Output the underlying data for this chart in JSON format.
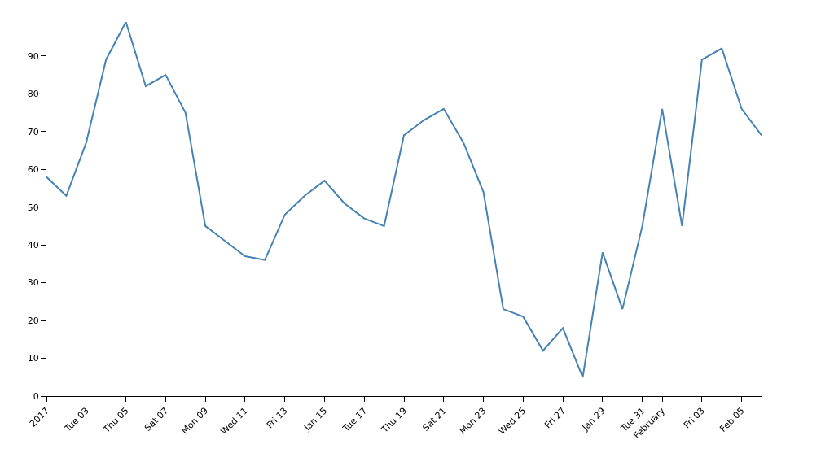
{
  "chart_data": {
    "type": "line",
    "x": [
      "2017-01-01",
      "2017-01-02",
      "2017-01-03",
      "2017-01-04",
      "2017-01-05",
      "2017-01-06",
      "2017-01-07",
      "2017-01-08",
      "2017-01-09",
      "2017-01-10",
      "2017-01-11",
      "2017-01-12",
      "2017-01-13",
      "2017-01-14",
      "2017-01-15",
      "2017-01-16",
      "2017-01-17",
      "2017-01-18",
      "2017-01-19",
      "2017-01-20",
      "2017-01-21",
      "2017-01-22",
      "2017-01-23",
      "2017-01-24",
      "2017-01-25",
      "2017-01-26",
      "2017-01-27",
      "2017-01-28",
      "2017-01-29",
      "2017-01-30",
      "2017-01-31",
      "2017-02-01",
      "2017-02-02",
      "2017-02-03",
      "2017-02-04",
      "2017-02-05",
      "2017-02-06"
    ],
    "values": [
      58,
      53,
      67,
      89,
      99,
      82,
      85,
      75,
      45,
      41,
      37,
      36,
      48,
      53,
      57,
      51,
      47,
      45,
      69,
      73,
      76,
      67,
      54,
      23,
      21,
      12,
      18,
      5,
      38,
      23,
      45,
      76,
      45,
      89,
      92,
      76,
      69
    ],
    "color": "#4682b4",
    "line_style": "solid",
    "marker": "none",
    "xlim": [
      "2017-01-01",
      "2017-02-06"
    ],
    "xticks": [
      {
        "value": "2017-01-01",
        "label": "2017"
      },
      {
        "value": "2017-01-03",
        "label": "Tue 03"
      },
      {
        "value": "2017-01-05",
        "label": "Thu 05"
      },
      {
        "value": "2017-01-07",
        "label": "Sat 07"
      },
      {
        "value": "2017-01-09",
        "label": "Mon 09"
      },
      {
        "value": "2017-01-11",
        "label": "Wed 11"
      },
      {
        "value": "2017-01-13",
        "label": "Fri 13"
      },
      {
        "value": "2017-01-15",
        "label": "Jan 15"
      },
      {
        "value": "2017-01-17",
        "label": "Tue 17"
      },
      {
        "value": "2017-01-19",
        "label": "Thu 19"
      },
      {
        "value": "2017-01-21",
        "label": "Sat 21"
      },
      {
        "value": "2017-01-23",
        "label": "Mon 23"
      },
      {
        "value": "2017-01-25",
        "label": "Wed 25"
      },
      {
        "value": "2017-01-27",
        "label": "Fri 27"
      },
      {
        "value": "2017-01-29",
        "label": "Jan 29"
      },
      {
        "value": "2017-01-31",
        "label": "Tue 31"
      },
      {
        "value": "2017-02-01",
        "label": "February"
      },
      {
        "value": "2017-02-03",
        "label": "Fri 03"
      },
      {
        "value": "2017-02-05",
        "label": "Feb 05"
      }
    ],
    "ylim": [
      0,
      99
    ],
    "yticks": [
      0,
      10,
      20,
      30,
      40,
      50,
      60,
      70,
      80,
      90
    ]
  }
}
